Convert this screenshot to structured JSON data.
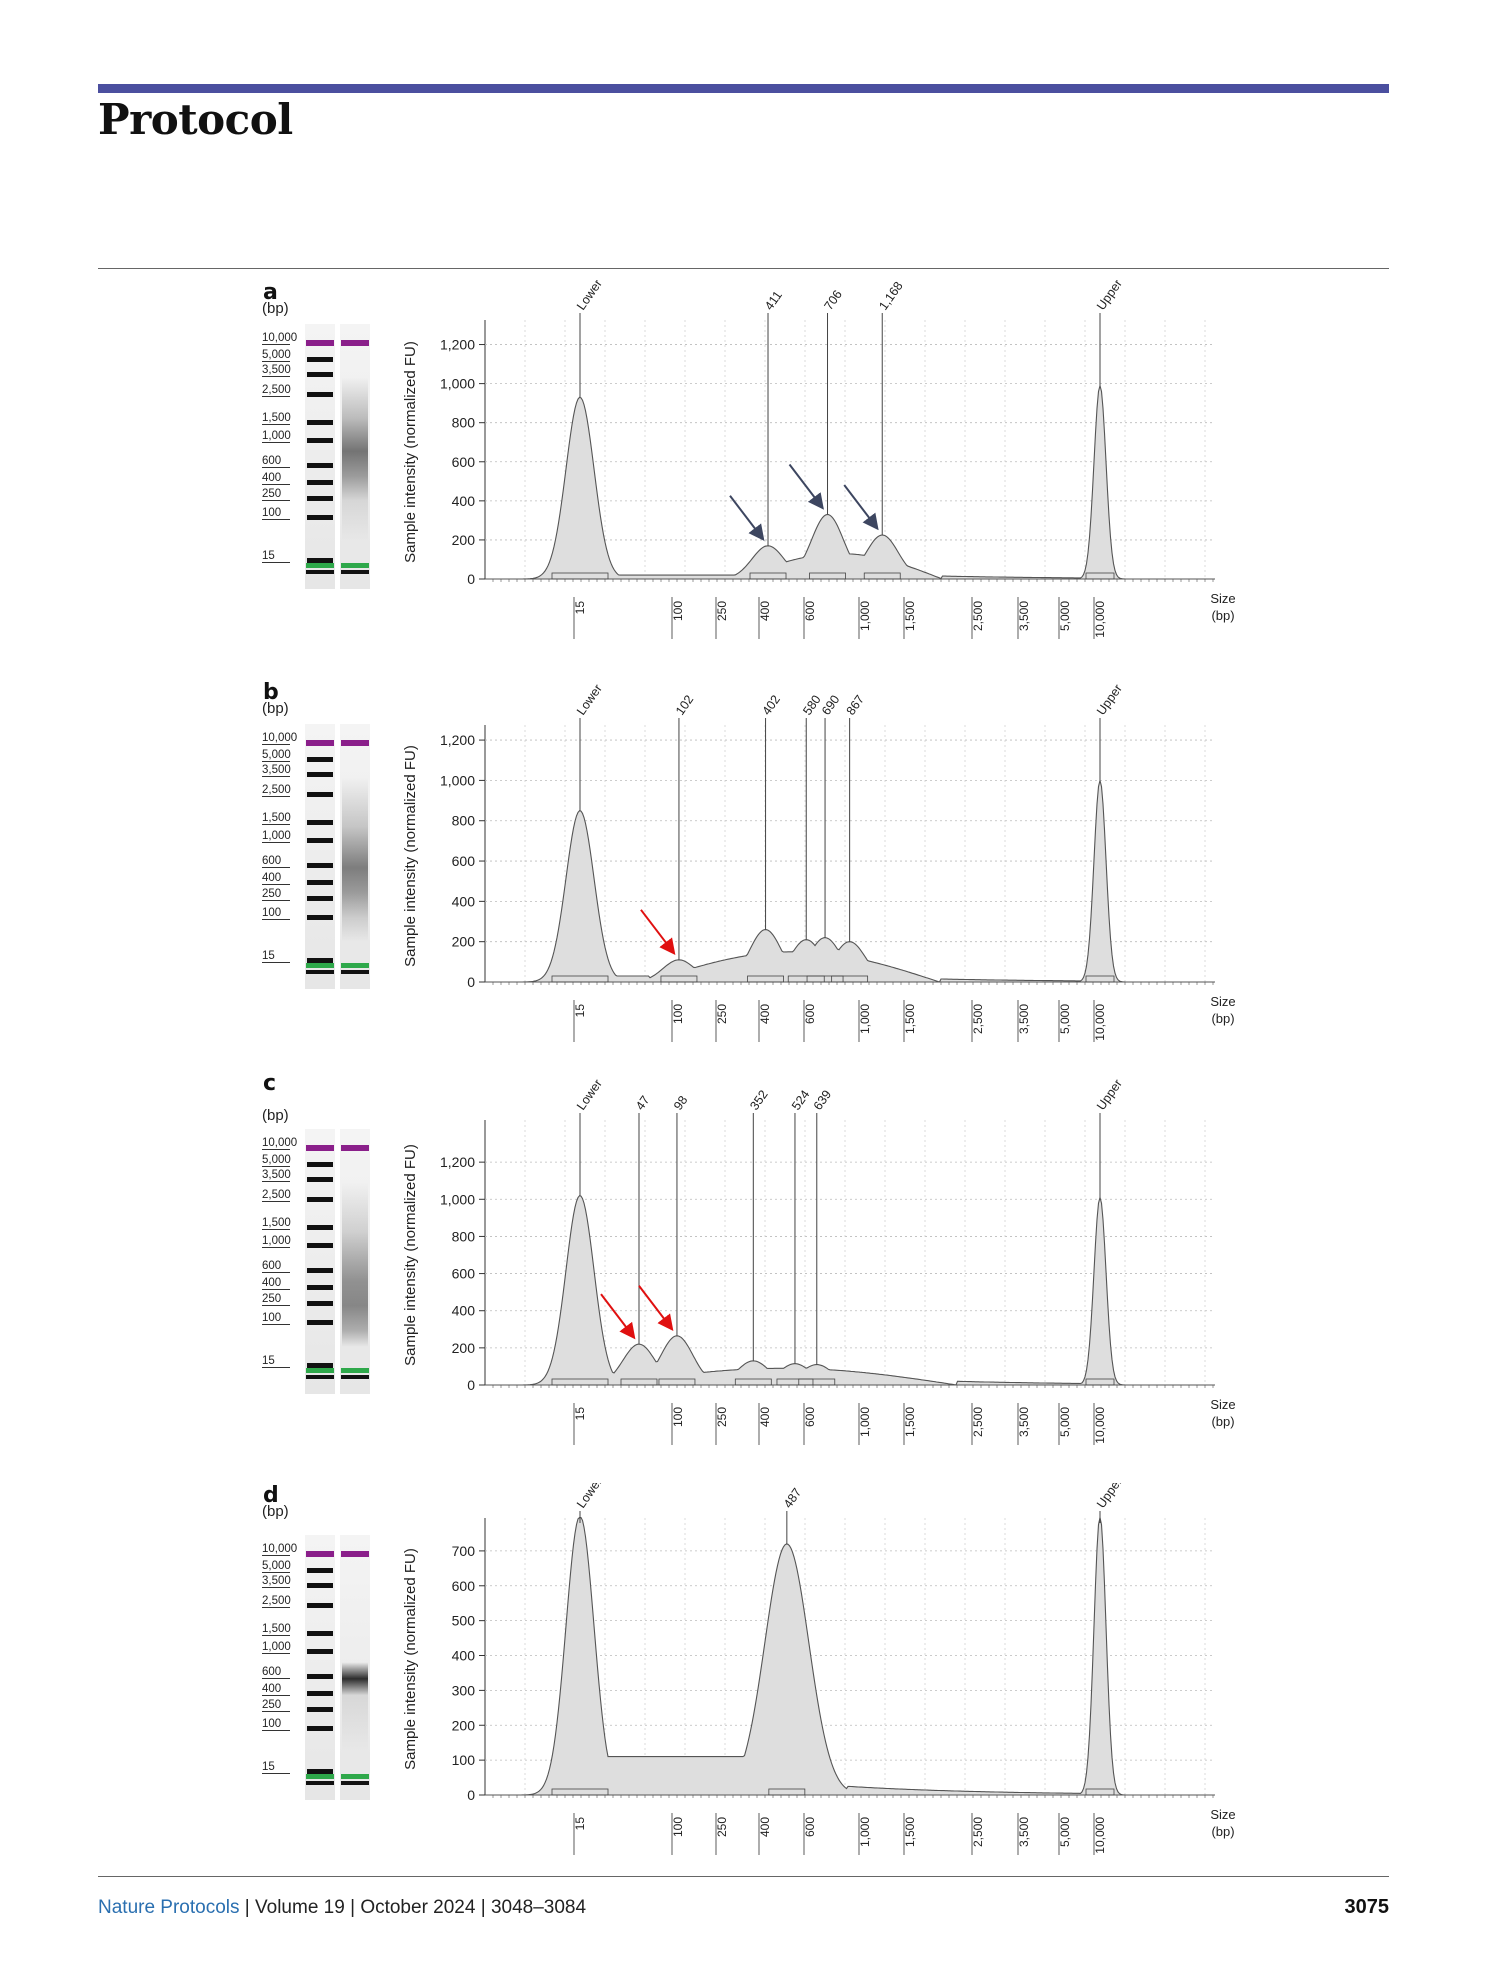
{
  "header": {
    "title": "Protocol"
  },
  "footer": {
    "journal": "Nature Protocols",
    "volume": "Volume 19",
    "date": "October 2024",
    "pages": "3048–3084",
    "page_number": "3075"
  },
  "colors": {
    "header_bar": "#4b4f9f",
    "footer_link": "#2a6fb0",
    "marker_upper": "#8a1f8a",
    "marker_lower": "#2ea84a",
    "arrow_dark": "#3d4660",
    "arrow_red": "#e01010"
  },
  "ladder_unit": "(bp)",
  "ladder_labels": [
    "10,000",
    "5,000",
    "3,500",
    "2,500",
    "1,500",
    "1,000",
    "600",
    "400",
    "250",
    "100",
    "15"
  ],
  "x_tick_labels": [
    "15",
    "100",
    "250",
    "400",
    "600",
    "1,000",
    "1,500",
    "2,500",
    "3,500",
    "5,000",
    "10,000"
  ],
  "chart_data": [
    {
      "panel": "a",
      "type": "area",
      "ylabel": "Sample intensity (normalized FU)",
      "xlabel": "Size (bp)",
      "ylim": [
        0,
        1300
      ],
      "y_ticks": [
        "0",
        "200",
        "400",
        "600",
        "800",
        "1,000",
        "1,200"
      ],
      "peak_labels": [
        "Lower",
        "411",
        "706",
        "1,168",
        "Upper"
      ],
      "peaks": [
        {
          "label": "Lower",
          "size_bp": 15,
          "intensity": 930
        },
        {
          "label": "411",
          "size_bp": 411,
          "intensity": 170
        },
        {
          "label": "706",
          "size_bp": 706,
          "intensity": 330
        },
        {
          "label": "1,168",
          "size_bp": 1168,
          "intensity": 225
        },
        {
          "label": "Upper",
          "size_bp": 10000,
          "intensity": 990
        }
      ],
      "arrows": {
        "color": "dark",
        "count": 3
      }
    },
    {
      "panel": "b",
      "type": "area",
      "ylabel": "Sample intensity (normalized FU)",
      "xlabel": "Size (bp)",
      "ylim": [
        0,
        1250
      ],
      "y_ticks": [
        "0",
        "200",
        "400",
        "600",
        "800",
        "1,000",
        "1,200"
      ],
      "peak_labels": [
        "Lower",
        "102",
        "402",
        "580",
        "690",
        "867",
        "Upper"
      ],
      "peaks": [
        {
          "label": "Lower",
          "size_bp": 15,
          "intensity": 850
        },
        {
          "label": "102",
          "size_bp": 102,
          "intensity": 110
        },
        {
          "label": "402",
          "size_bp": 402,
          "intensity": 260
        },
        {
          "label": "580",
          "size_bp": 580,
          "intensity": 210
        },
        {
          "label": "690",
          "size_bp": 690,
          "intensity": 220
        },
        {
          "label": "867",
          "size_bp": 867,
          "intensity": 200
        },
        {
          "label": "Upper",
          "size_bp": 10000,
          "intensity": 1000
        }
      ],
      "arrows": {
        "color": "red",
        "count": 1
      }
    },
    {
      "panel": "c",
      "type": "area",
      "ylabel": "Sample intensity (normalized FU)",
      "xlabel": "Size (bp)",
      "ylim": [
        0,
        1400
      ],
      "y_ticks": [
        "0",
        "200",
        "400",
        "600",
        "800",
        "1,000",
        "1,200"
      ],
      "peak_labels": [
        "Lower",
        "47",
        "98",
        "352",
        "524",
        "639",
        "Upper"
      ],
      "peaks": [
        {
          "label": "Lower",
          "size_bp": 15,
          "intensity": 1020
        },
        {
          "label": "47",
          "size_bp": 47,
          "intensity": 220
        },
        {
          "label": "98",
          "size_bp": 98,
          "intensity": 265
        },
        {
          "label": "352",
          "size_bp": 352,
          "intensity": 130
        },
        {
          "label": "524",
          "size_bp": 524,
          "intensity": 115
        },
        {
          "label": "639",
          "size_bp": 639,
          "intensity": 110
        },
        {
          "label": "Upper",
          "size_bp": 10000,
          "intensity": 1010
        }
      ],
      "arrows": {
        "color": "red",
        "count": 2
      }
    },
    {
      "panel": "d",
      "type": "area",
      "ylabel": "Sample intensity (normalized FU)",
      "xlabel": "Size (bp)",
      "ylim": [
        0,
        780
      ],
      "y_ticks": [
        "0",
        "100",
        "200",
        "300",
        "400",
        "500",
        "600",
        "700"
      ],
      "peak_labels": [
        "Lower",
        "487",
        "Upper"
      ],
      "peaks": [
        {
          "label": "Lower",
          "size_bp": 15,
          "intensity": 800
        },
        {
          "label": "487",
          "size_bp": 487,
          "intensity": 720
        },
        {
          "label": "Upper",
          "size_bp": 10000,
          "intensity": 800
        }
      ],
      "arrows": {
        "color": "none",
        "count": 0
      }
    }
  ],
  "panels": [
    {
      "letter": "a"
    },
    {
      "letter": "b"
    },
    {
      "letter": "c"
    },
    {
      "letter": "d"
    }
  ]
}
